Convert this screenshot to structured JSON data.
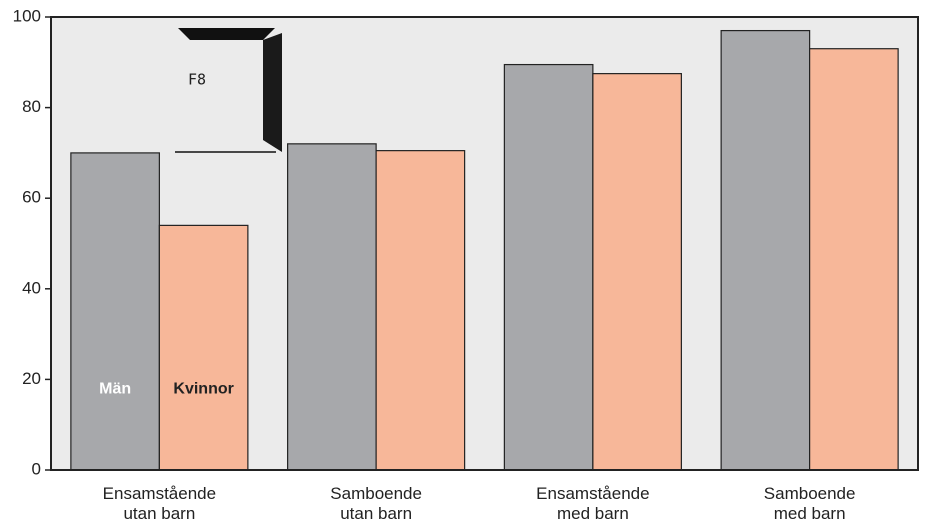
{
  "chart_data": {
    "type": "bar",
    "categories": [
      "Ensamstående\nutan barn",
      "Samboende\nutan barn",
      "Ensamstående\nmed barn",
      "Samboende\nmed barn"
    ],
    "series": [
      {
        "name": "Män",
        "color": "#a7a8ab",
        "label_color": "#ffffff",
        "values": [
          70,
          72,
          89.5,
          97
        ]
      },
      {
        "name": "Kvinnor",
        "color": "#f7b799",
        "label_color": "#222222",
        "values": [
          54,
          70.5,
          87.5,
          93
        ]
      }
    ],
    "ylim": [
      0,
      100
    ],
    "yticks": [
      0,
      20,
      40,
      60,
      80,
      100
    ],
    "plot_background": "#ebebeb",
    "annotation": "F8"
  }
}
